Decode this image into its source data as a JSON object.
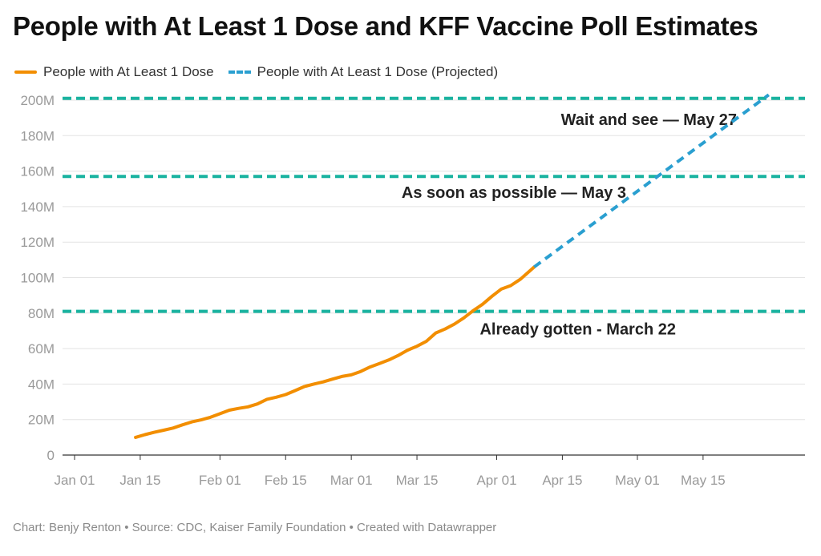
{
  "chart_data": {
    "type": "line",
    "title": "People with At Least 1 Dose and KFF Vaccine Poll Estimates",
    "xlabel": "",
    "ylabel": "",
    "x_ticks": [
      "Jan 01",
      "Jan 15",
      "Feb 01",
      "Feb 15",
      "Mar 01",
      "Mar 15",
      "Apr 01",
      "Apr 15",
      "May 01",
      "May 15"
    ],
    "y_ticks": [
      "0",
      "20M",
      "40M",
      "60M",
      "80M",
      "100M",
      "120M",
      "140M",
      "160M",
      "180M",
      "200M"
    ],
    "ylim": [
      0,
      200000000
    ],
    "xlim": [
      "2021-01-01",
      "2021-05-31"
    ],
    "grid": true,
    "legend_position": "top-left",
    "series": [
      {
        "name": "People with At Least 1 Dose",
        "color": "#f28e00",
        "style": "solid",
        "points": [
          [
            "2021-01-14",
            10000000
          ],
          [
            "2021-01-16",
            11500000
          ],
          [
            "2021-01-18",
            12800000
          ],
          [
            "2021-01-20",
            14000000
          ],
          [
            "2021-01-22",
            15200000
          ],
          [
            "2021-01-24",
            17000000
          ],
          [
            "2021-01-26",
            18700000
          ],
          [
            "2021-01-28",
            19800000
          ],
          [
            "2021-01-30",
            21300000
          ],
          [
            "2021-02-01",
            23300000
          ],
          [
            "2021-02-03",
            25300000
          ],
          [
            "2021-02-05",
            26300000
          ],
          [
            "2021-02-07",
            27200000
          ],
          [
            "2021-02-09",
            28800000
          ],
          [
            "2021-02-11",
            31400000
          ],
          [
            "2021-02-13",
            32600000
          ],
          [
            "2021-02-15",
            34100000
          ],
          [
            "2021-02-17",
            36300000
          ],
          [
            "2021-02-19",
            38600000
          ],
          [
            "2021-02-21",
            40000000
          ],
          [
            "2021-02-23",
            41200000
          ],
          [
            "2021-02-25",
            42800000
          ],
          [
            "2021-02-27",
            44300000
          ],
          [
            "2021-03-01",
            45200000
          ],
          [
            "2021-03-03",
            47100000
          ],
          [
            "2021-03-05",
            49600000
          ],
          [
            "2021-03-07",
            51600000
          ],
          [
            "2021-03-09",
            53600000
          ],
          [
            "2021-03-11",
            56100000
          ],
          [
            "2021-03-13",
            59100000
          ],
          [
            "2021-03-15",
            61300000
          ],
          [
            "2021-03-17",
            64100000
          ],
          [
            "2021-03-19",
            68800000
          ],
          [
            "2021-03-21",
            71000000
          ],
          [
            "2021-03-23",
            73800000
          ],
          [
            "2021-03-25",
            77300000
          ],
          [
            "2021-03-27",
            81400000
          ],
          [
            "2021-03-29",
            85000000
          ],
          [
            "2021-03-31",
            89500000
          ],
          [
            "2021-04-02",
            93600000
          ],
          [
            "2021-04-04",
            95500000
          ],
          [
            "2021-04-06",
            99000000
          ],
          [
            "2021-04-08",
            103600000
          ],
          [
            "2021-04-09",
            106000000
          ]
        ]
      },
      {
        "name": "People with At Least 1 Dose (Projected)",
        "color": "#2a9fd0",
        "style": "dashed",
        "points": [
          [
            "2021-04-09",
            106000000
          ],
          [
            "2021-05-29",
            203000000
          ]
        ]
      }
    ],
    "reference_lines": [
      {
        "label": "Wait and see — May 27",
        "value": 201000000,
        "color": "#1ab3a0"
      },
      {
        "label": "As soon as possible — May 3",
        "value": 157000000,
        "color": "#1ab3a0"
      },
      {
        "label": "Already gotten - March 22",
        "value": 81000000,
        "color": "#1ab3a0"
      }
    ]
  },
  "footer": "Chart: Benjy Renton • Source: CDC, Kaiser Family Foundation • Created with Datawrapper"
}
